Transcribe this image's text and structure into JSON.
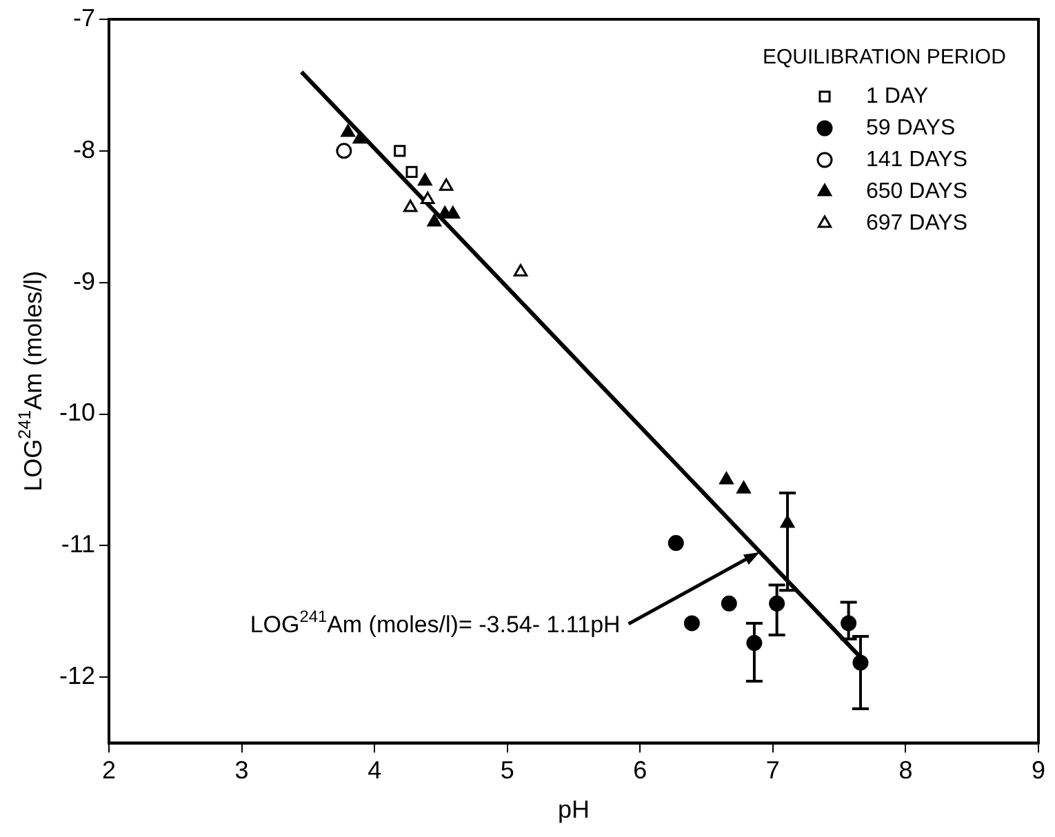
{
  "chart_data": {
    "type": "scatter",
    "xlabel": "pH",
    "ylabel": "LOG$^{241}$Am (moles/l)",
    "legend_title": "EQUILIBRATION PERIOD",
    "legend": "top right",
    "grid": false,
    "xlim": [
      2,
      9
    ],
    "xticks": [
      2,
      3,
      4,
      5,
      6,
      7,
      8,
      9
    ],
    "ylim": [
      -12.5,
      -7
    ],
    "yticks": [
      -12,
      -11,
      -10,
      -9,
      -8,
      -7
    ],
    "annotations": [
      {
        "text": "LOG$^{241}$Am (moles/l)= -3.54- 1.11pH",
        "x": 6.9,
        "y": -11.05
      }
    ],
    "series": [
      {
        "name": "1 DAY",
        "marker": "square",
        "color": "#ffffff",
        "x": [
          4.19,
          4.28
        ],
        "values": [
          -8.0,
          -8.16
        ]
      },
      {
        "name": "59 DAYS",
        "marker": "circle",
        "color": "#000000",
        "x": [
          6.27,
          6.39,
          6.67,
          6.86,
          7.03,
          7.57,
          7.66
        ],
        "values": [
          -10.98,
          -11.59,
          -11.44,
          -11.74,
          -11.44,
          -11.59,
          -11.89
        ],
        "errors": [
          null,
          null,
          null,
          [
            -12.03,
            -11.59
          ],
          [
            -11.68,
            -11.3
          ],
          [
            -11.71,
            -11.43
          ],
          [
            -12.24,
            -11.69
          ]
        ]
      },
      {
        "name": "141 DAYS",
        "marker": "circle",
        "color": "#ffffff",
        "x": [
          3.77
        ],
        "values": [
          -8.0
        ]
      },
      {
        "name": "650 DAYS",
        "marker": "triangle",
        "color": "#000000",
        "x": [
          3.8,
          3.89,
          4.38,
          4.45,
          4.53,
          4.59,
          6.65,
          6.78,
          7.11
        ],
        "values": [
          -7.86,
          -7.91,
          -8.23,
          -8.54,
          -8.48,
          -8.48,
          -10.5,
          -10.57,
          -10.83
        ],
        "errors": [
          null,
          null,
          null,
          null,
          null,
          null,
          null,
          null,
          [
            -11.34,
            -10.6
          ]
        ]
      },
      {
        "name": "697 DAYS",
        "marker": "triangle",
        "color": "#ffffff",
        "x": [
          4.27,
          4.4,
          4.54,
          5.1
        ],
        "values": [
          -8.43,
          -8.37,
          -8.27,
          -8.92
        ]
      },
      {
        "type": "line",
        "marker": "none",
        "color": "#000000",
        "x": [
          3.45,
          7.68
        ],
        "values": [
          -7.4,
          -11.87
        ]
      }
    ]
  }
}
